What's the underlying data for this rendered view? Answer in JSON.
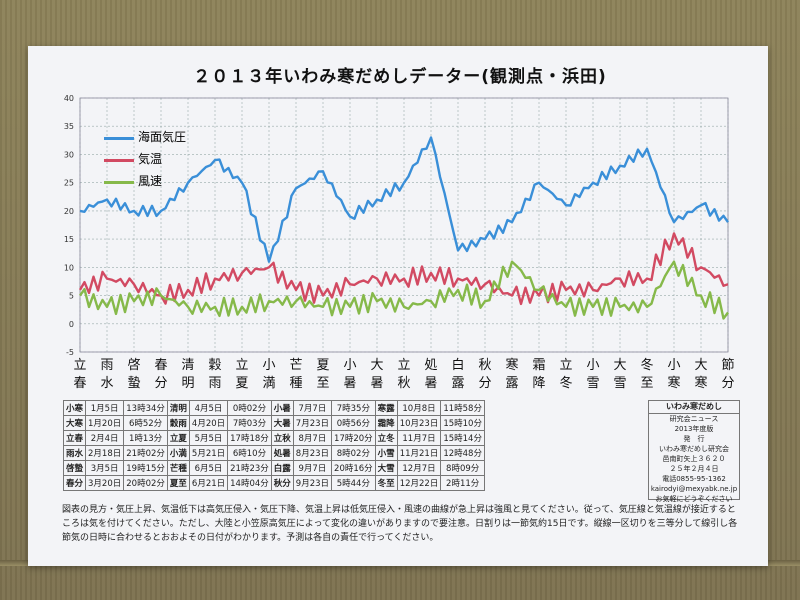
{
  "title": "２０１３年いわみ寒だめしデーター(観測点・浜田)",
  "chart_data": {
    "type": "line",
    "title": "２０１３年いわみ寒だめしデーター(観測点・浜田)",
    "ylim": [
      -5,
      40
    ],
    "yticks": [
      "40",
      "35",
      "30",
      "25",
      "20",
      "15",
      "10",
      "5",
      "0",
      "-5"
    ],
    "x": [
      "立春",
      "雨水",
      "啓蟄",
      "春分",
      "清明",
      "穀雨",
      "立夏",
      "小満",
      "芒種",
      "夏至",
      "小暑",
      "大暑",
      "立秋",
      "処暑",
      "白露",
      "秋分",
      "寒露",
      "霜降",
      "立冬",
      "小雪",
      "大雪",
      "冬至",
      "小寒",
      "大寒",
      "節分"
    ],
    "legend_position": "top-left",
    "grid": true,
    "series": [
      {
        "name": "海面気圧",
        "color": "#3a8fd8",
        "values": [
          20,
          22,
          20,
          20,
          25,
          29,
          25,
          11,
          24,
          27,
          19,
          22,
          25,
          33,
          13,
          15,
          18,
          25,
          21,
          25,
          28,
          31,
          18,
          21,
          18
        ]
      },
      {
        "name": "気温",
        "color": "#d24a62",
        "values": [
          6,
          8,
          7,
          5,
          6,
          8,
          9,
          10,
          6,
          5,
          7,
          8,
          8,
          9,
          8,
          7,
          5,
          5,
          6,
          6,
          8,
          8,
          16,
          10,
          7
        ]
      },
      {
        "name": "風速",
        "color": "#86b94a",
        "values": [
          5,
          3,
          4,
          5,
          3,
          3,
          3,
          4,
          4,
          3,
          3,
          4,
          3,
          4,
          6,
          4,
          11,
          6,
          3,
          3,
          3,
          3,
          11,
          5,
          2
        ]
      }
    ]
  },
  "table": {
    "rows": [
      [
        "小寒",
        "1月5日",
        "13時34分",
        "清明",
        "4月5日",
        "0時02分",
        "小暑",
        "7月7日",
        "7時35分",
        "寒露",
        "10月8日",
        "11時58分"
      ],
      [
        "大寒",
        "1月20日",
        "6時52分",
        "穀雨",
        "4月20日",
        "7時03分",
        "大暑",
        "7月23日",
        "0時56分",
        "霜降",
        "10月23日",
        "15時10分"
      ],
      [
        "立春",
        "2月4日",
        "1時13分",
        "立夏",
        "5月5日",
        "17時18分",
        "立秋",
        "8月7日",
        "17時20分",
        "立冬",
        "11月7日",
        "15時14分"
      ],
      [
        "雨水",
        "2月18日",
        "21時02分",
        "小満",
        "5月21日",
        "6時10分",
        "処暑",
        "8月23日",
        "8時02分",
        "小雪",
        "11月21日",
        "12時48分"
      ],
      [
        "啓蟄",
        "3月5日",
        "19時15分",
        "芒種",
        "6月5日",
        "21時23分",
        "白露",
        "9月7日",
        "20時16分",
        "大雪",
        "12月7日",
        "8時09分"
      ],
      [
        "春分",
        "3月20日",
        "20時02分",
        "夏至",
        "6月21日",
        "14時04分",
        "秋分",
        "9月23日",
        "5時44分",
        "冬至",
        "12月22日",
        "2時11分"
      ]
    ]
  },
  "infobox": {
    "heading": "いわみ寒だめし",
    "lines": [
      "研究会ニュース",
      "2013年度版",
      "発　行",
      "いわみ寒だめし研究会",
      "邑南町矢上３６２０",
      "２５年２月４日",
      "電話0855-95-1362",
      "kairodyi@mexyabk.ne.jp",
      "お気軽にどうぞください"
    ]
  },
  "note": "図表の見方・気圧上昇、気温低下は高気圧侵入・気圧下降、気温上昇は低気圧侵入・風速の曲線が急上昇は強風と見てください。従って、気圧線と気温線が接近するところは気を付けてください。ただし、大陸と小笠原高気圧によって変化の違いがありますので要注意。日割りは一節気約15日です。縦線一区切りを三等分して線引し各節気の日時に合わせるとおおよその日付がわかります。予測は各自の責任で行ってください。"
}
